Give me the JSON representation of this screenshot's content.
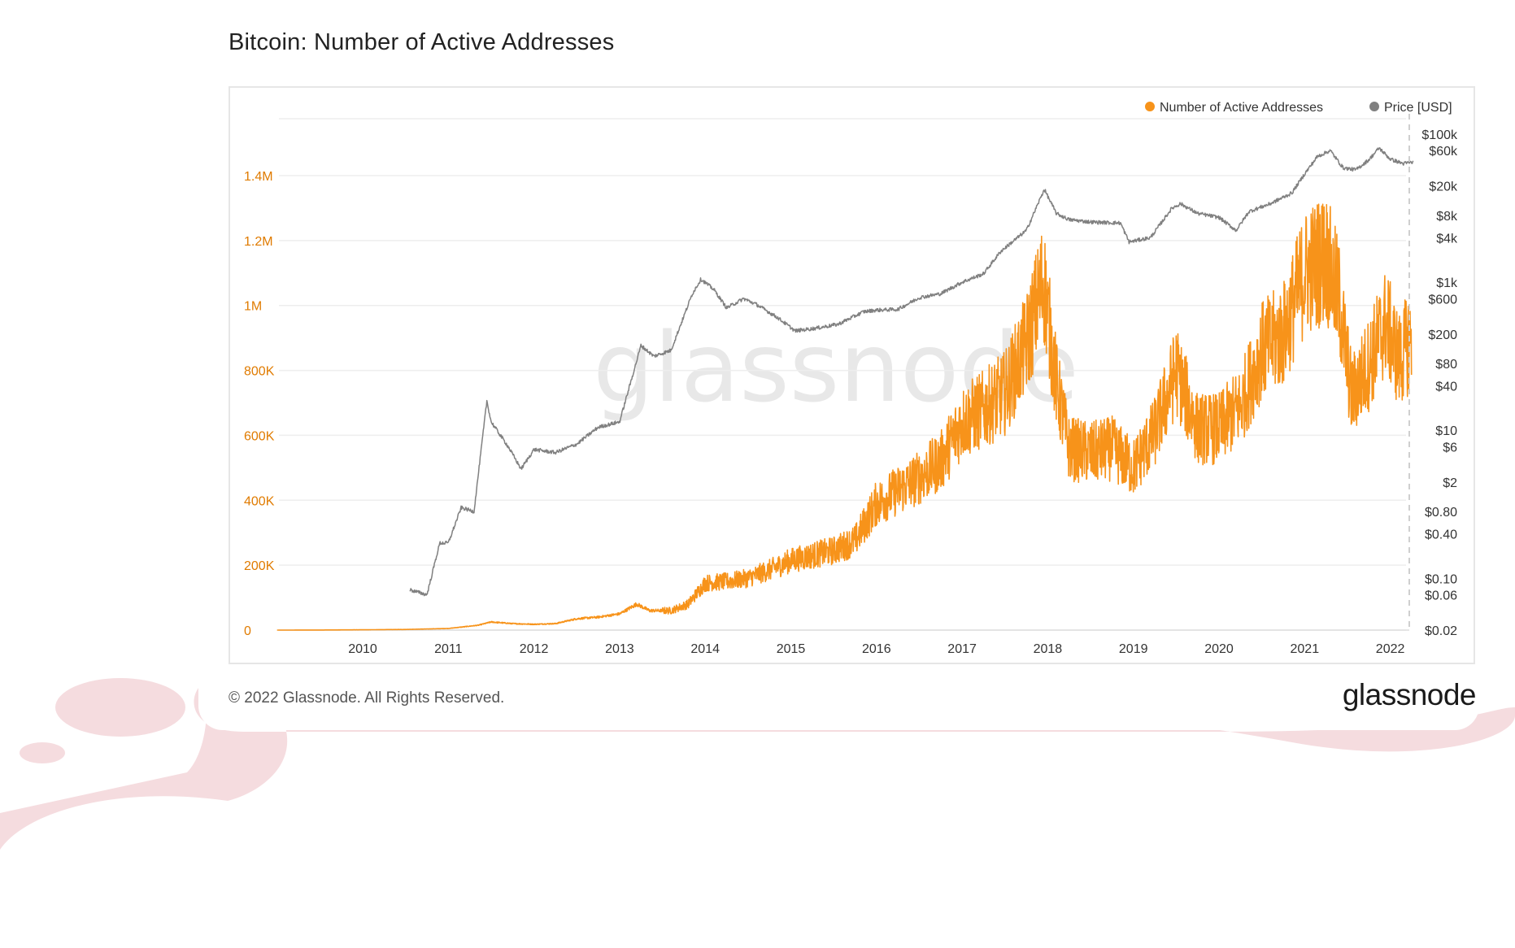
{
  "header": {
    "title": "Bitcoin: Number of Active Addresses"
  },
  "watermark": "glassnode",
  "footer": {
    "copyright": "© 2022 Glassnode. All Rights Reserved.",
    "logo_text": "glassnode"
  },
  "colors": {
    "active_addresses": "#f7931a",
    "price": "#808080",
    "left_axis_text": "#e07b00",
    "blob": "#f5dcdf",
    "grid": "#eeeeee"
  },
  "chart_data": {
    "type": "line",
    "title": "Bitcoin: Number of Active Addresses",
    "legend": {
      "position": "top-right",
      "entries": [
        "Number of Active Addresses",
        "Price [USD]"
      ]
    },
    "x_axis": {
      "ticks": [
        "2010",
        "2011",
        "2012",
        "2013",
        "2014",
        "2015",
        "2016",
        "2017",
        "2018",
        "2019",
        "2020",
        "2021",
        "2022"
      ],
      "range": [
        2009.0,
        2022.3
      ]
    },
    "y_left": {
      "ticks": [
        "0",
        "200K",
        "400K",
        "600K",
        "800K",
        "1M",
        "1.2M",
        "1.4M"
      ],
      "range": [
        0,
        1400000
      ]
    },
    "y_right": {
      "scale": "log",
      "ticks": [
        "$0.02",
        "$0.06",
        "$0.10",
        "$0.40",
        "$0.80",
        "$2",
        "$6",
        "$10",
        "$40",
        "$80",
        "$200",
        "$600",
        "$1k",
        "$4k",
        "$8k",
        "$20k",
        "$60k",
        "$100k"
      ]
    },
    "grid": true,
    "series": [
      {
        "name": "Number of Active Addresses",
        "axis": "left",
        "points": [
          [
            2009.0,
            0
          ],
          [
            2009.5,
            300
          ],
          [
            2010.0,
            1000
          ],
          [
            2010.5,
            2000
          ],
          [
            2011.0,
            5000
          ],
          [
            2011.35,
            15000
          ],
          [
            2011.5,
            25000
          ],
          [
            2011.75,
            20000
          ],
          [
            2012.0,
            18000
          ],
          [
            2012.25,
            20000
          ],
          [
            2012.5,
            35000
          ],
          [
            2012.75,
            40000
          ],
          [
            2013.0,
            50000
          ],
          [
            2013.2,
            80000
          ],
          [
            2013.35,
            60000
          ],
          [
            2013.6,
            60000
          ],
          [
            2013.8,
            80000
          ],
          [
            2014.0,
            145000
          ],
          [
            2014.25,
            150000
          ],
          [
            2014.5,
            160000
          ],
          [
            2014.75,
            185000
          ],
          [
            2015.0,
            215000
          ],
          [
            2015.25,
            230000
          ],
          [
            2015.5,
            245000
          ],
          [
            2015.75,
            275000
          ],
          [
            2016.0,
            390000
          ],
          [
            2016.25,
            430000
          ],
          [
            2016.5,
            470000
          ],
          [
            2016.75,
            520000
          ],
          [
            2017.0,
            640000
          ],
          [
            2017.25,
            680000
          ],
          [
            2017.5,
            730000
          ],
          [
            2017.75,
            880000
          ],
          [
            2017.95,
            1080000
          ],
          [
            2018.1,
            760000
          ],
          [
            2018.25,
            560000
          ],
          [
            2018.5,
            545000
          ],
          [
            2018.75,
            560000
          ],
          [
            2019.0,
            500000
          ],
          [
            2019.25,
            610000
          ],
          [
            2019.5,
            800000
          ],
          [
            2019.75,
            620000
          ],
          [
            2020.0,
            620000
          ],
          [
            2020.25,
            690000
          ],
          [
            2020.5,
            860000
          ],
          [
            2020.75,
            910000
          ],
          [
            2021.0,
            1100000
          ],
          [
            2021.25,
            1150000
          ],
          [
            2021.4,
            1020000
          ],
          [
            2021.55,
            720000
          ],
          [
            2021.75,
            820000
          ],
          [
            2021.95,
            950000
          ],
          [
            2022.1,
            830000
          ],
          [
            2022.25,
            900000
          ]
        ]
      },
      {
        "name": "Price [USD]",
        "axis": "right",
        "points": [
          [
            2010.55,
            0.07
          ],
          [
            2010.75,
            0.06
          ],
          [
            2010.9,
            0.3
          ],
          [
            2011.0,
            0.3
          ],
          [
            2011.15,
            0.9
          ],
          [
            2011.3,
            0.8
          ],
          [
            2011.45,
            25
          ],
          [
            2011.5,
            13
          ],
          [
            2011.7,
            6
          ],
          [
            2011.85,
            3
          ],
          [
            2012.0,
            5.5
          ],
          [
            2012.25,
            5
          ],
          [
            2012.5,
            6.5
          ],
          [
            2012.75,
            11
          ],
          [
            2013.0,
            13
          ],
          [
            2013.25,
            140
          ],
          [
            2013.4,
            100
          ],
          [
            2013.6,
            120
          ],
          [
            2013.85,
            700
          ],
          [
            2013.95,
            1100
          ],
          [
            2014.1,
            800
          ],
          [
            2014.25,
            450
          ],
          [
            2014.45,
            600
          ],
          [
            2014.6,
            500
          ],
          [
            2014.85,
            330
          ],
          [
            2015.05,
            220
          ],
          [
            2015.3,
            240
          ],
          [
            2015.55,
            270
          ],
          [
            2015.85,
            400
          ],
          [
            2016.0,
            420
          ],
          [
            2016.25,
            430
          ],
          [
            2016.5,
            620
          ],
          [
            2016.75,
            700
          ],
          [
            2017.0,
            1000
          ],
          [
            2017.25,
            1300
          ],
          [
            2017.45,
            2600
          ],
          [
            2017.75,
            5000
          ],
          [
            2017.96,
            18000
          ],
          [
            2018.1,
            8500
          ],
          [
            2018.25,
            7000
          ],
          [
            2018.5,
            6500
          ],
          [
            2018.85,
            6300
          ],
          [
            2018.95,
            3500
          ],
          [
            2019.2,
            4000
          ],
          [
            2019.45,
            10000
          ],
          [
            2019.55,
            11500
          ],
          [
            2019.75,
            8500
          ],
          [
            2020.0,
            7500
          ],
          [
            2020.2,
            5000
          ],
          [
            2020.35,
            9000
          ],
          [
            2020.6,
            11500
          ],
          [
            2020.85,
            16000
          ],
          [
            2021.0,
            29000
          ],
          [
            2021.15,
            50000
          ],
          [
            2021.3,
            60000
          ],
          [
            2021.45,
            35000
          ],
          [
            2021.6,
            33000
          ],
          [
            2021.75,
            45000
          ],
          [
            2021.87,
            65000
          ],
          [
            2022.0,
            46000
          ],
          [
            2022.15,
            40000
          ],
          [
            2022.27,
            42000
          ]
        ]
      }
    ]
  }
}
